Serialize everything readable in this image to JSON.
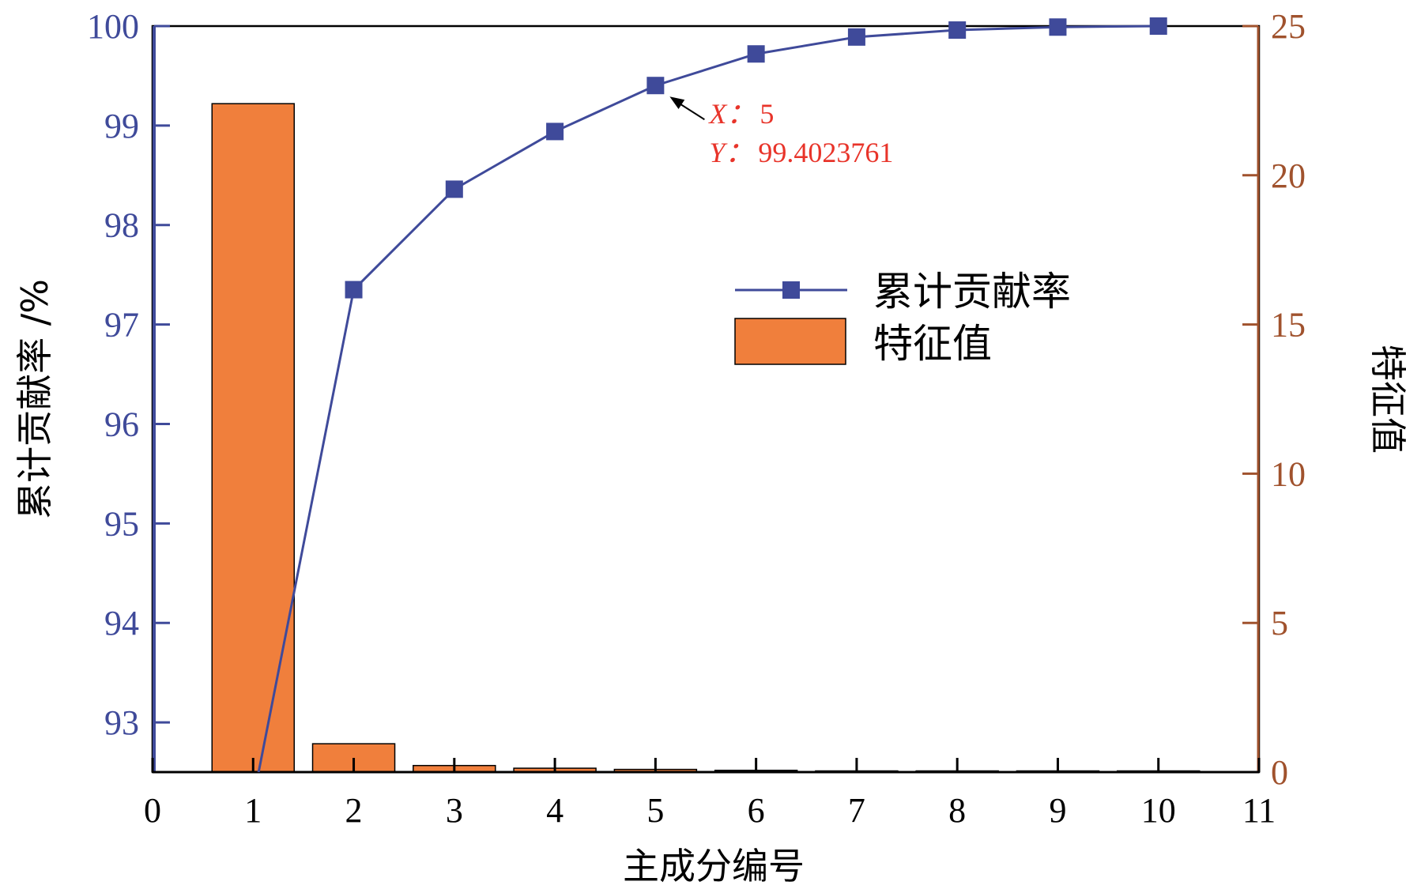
{
  "chart_data": {
    "type": "bar+line",
    "x": [
      1,
      2,
      3,
      4,
      5,
      6,
      7,
      8,
      9,
      10
    ],
    "xlim": [
      0,
      11
    ],
    "xticks": [
      0,
      1,
      2,
      3,
      4,
      5,
      6,
      7,
      8,
      9,
      10,
      11
    ],
    "xlabel": "主成分编号",
    "y_left": {
      "label": "累计贡献率 /%",
      "lim": [
        92.5,
        100
      ],
      "ticks": [
        93,
        94,
        95,
        96,
        97,
        98,
        99,
        100
      ],
      "color": "#3f4a9a"
    },
    "y_right": {
      "label": "特征值",
      "lim": [
        0,
        25
      ],
      "ticks": [
        0,
        5,
        10,
        15,
        20,
        25
      ],
      "color": "#a0522d"
    },
    "series": [
      {
        "name": "累计贡献率",
        "type": "line",
        "axis": "left",
        "color": "#3f4a9a",
        "marker": "square",
        "values": [
          92.22,
          97.35,
          98.36,
          98.94,
          99.4023761,
          99.72,
          99.89,
          99.96,
          99.99,
          100.0
        ]
      },
      {
        "name": "特征值",
        "type": "bar",
        "axis": "right",
        "color": "#f07f3c",
        "values": [
          22.4,
          0.95,
          0.22,
          0.13,
          0.09,
          0.06,
          0.03,
          0.01,
          0.005,
          0.002
        ]
      }
    ],
    "annotation": {
      "x": 5,
      "y": 99.4023761,
      "x_label": "X：",
      "x_value": "5",
      "y_label": "Y：",
      "y_value": "99.4023761",
      "color": "#e8342a"
    },
    "legend": {
      "placement": "center-right",
      "entries": [
        "累计贡献率",
        "特征值"
      ]
    },
    "grid": false
  }
}
